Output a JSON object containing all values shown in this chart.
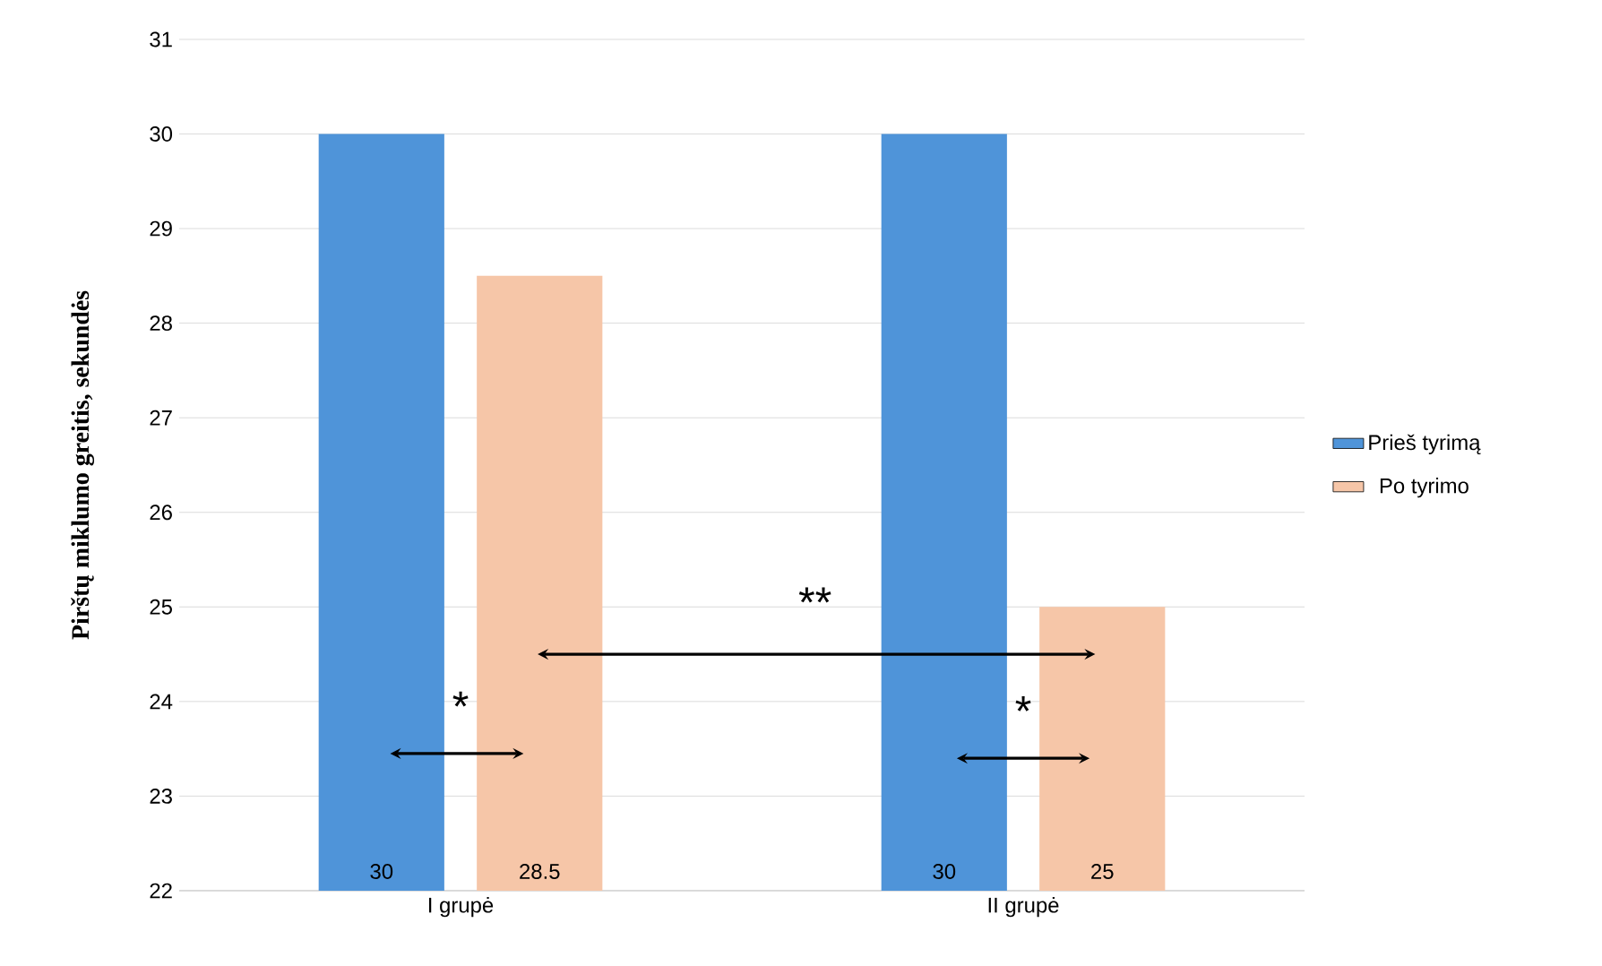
{
  "chart_data": {
    "type": "bar",
    "ylabel": "Pirštų miklumo greitis, sekundės",
    "categories": [
      "I grupė",
      "II grupė"
    ],
    "series": [
      {
        "name": "Prieš tyrimą",
        "color": "#4f94d9",
        "values": [
          30,
          30
        ]
      },
      {
        "name": "Po tyrimo",
        "color": "#f6c6a8",
        "values": [
          28.5,
          25
        ]
      }
    ],
    "ylim": [
      22,
      31
    ],
    "yticks": [
      22,
      23,
      24,
      25,
      26,
      27,
      28,
      29,
      30,
      31
    ],
    "grid": "y",
    "legend": "right",
    "data_labels": true,
    "annotations": [
      "*",
      "**",
      "*"
    ]
  }
}
